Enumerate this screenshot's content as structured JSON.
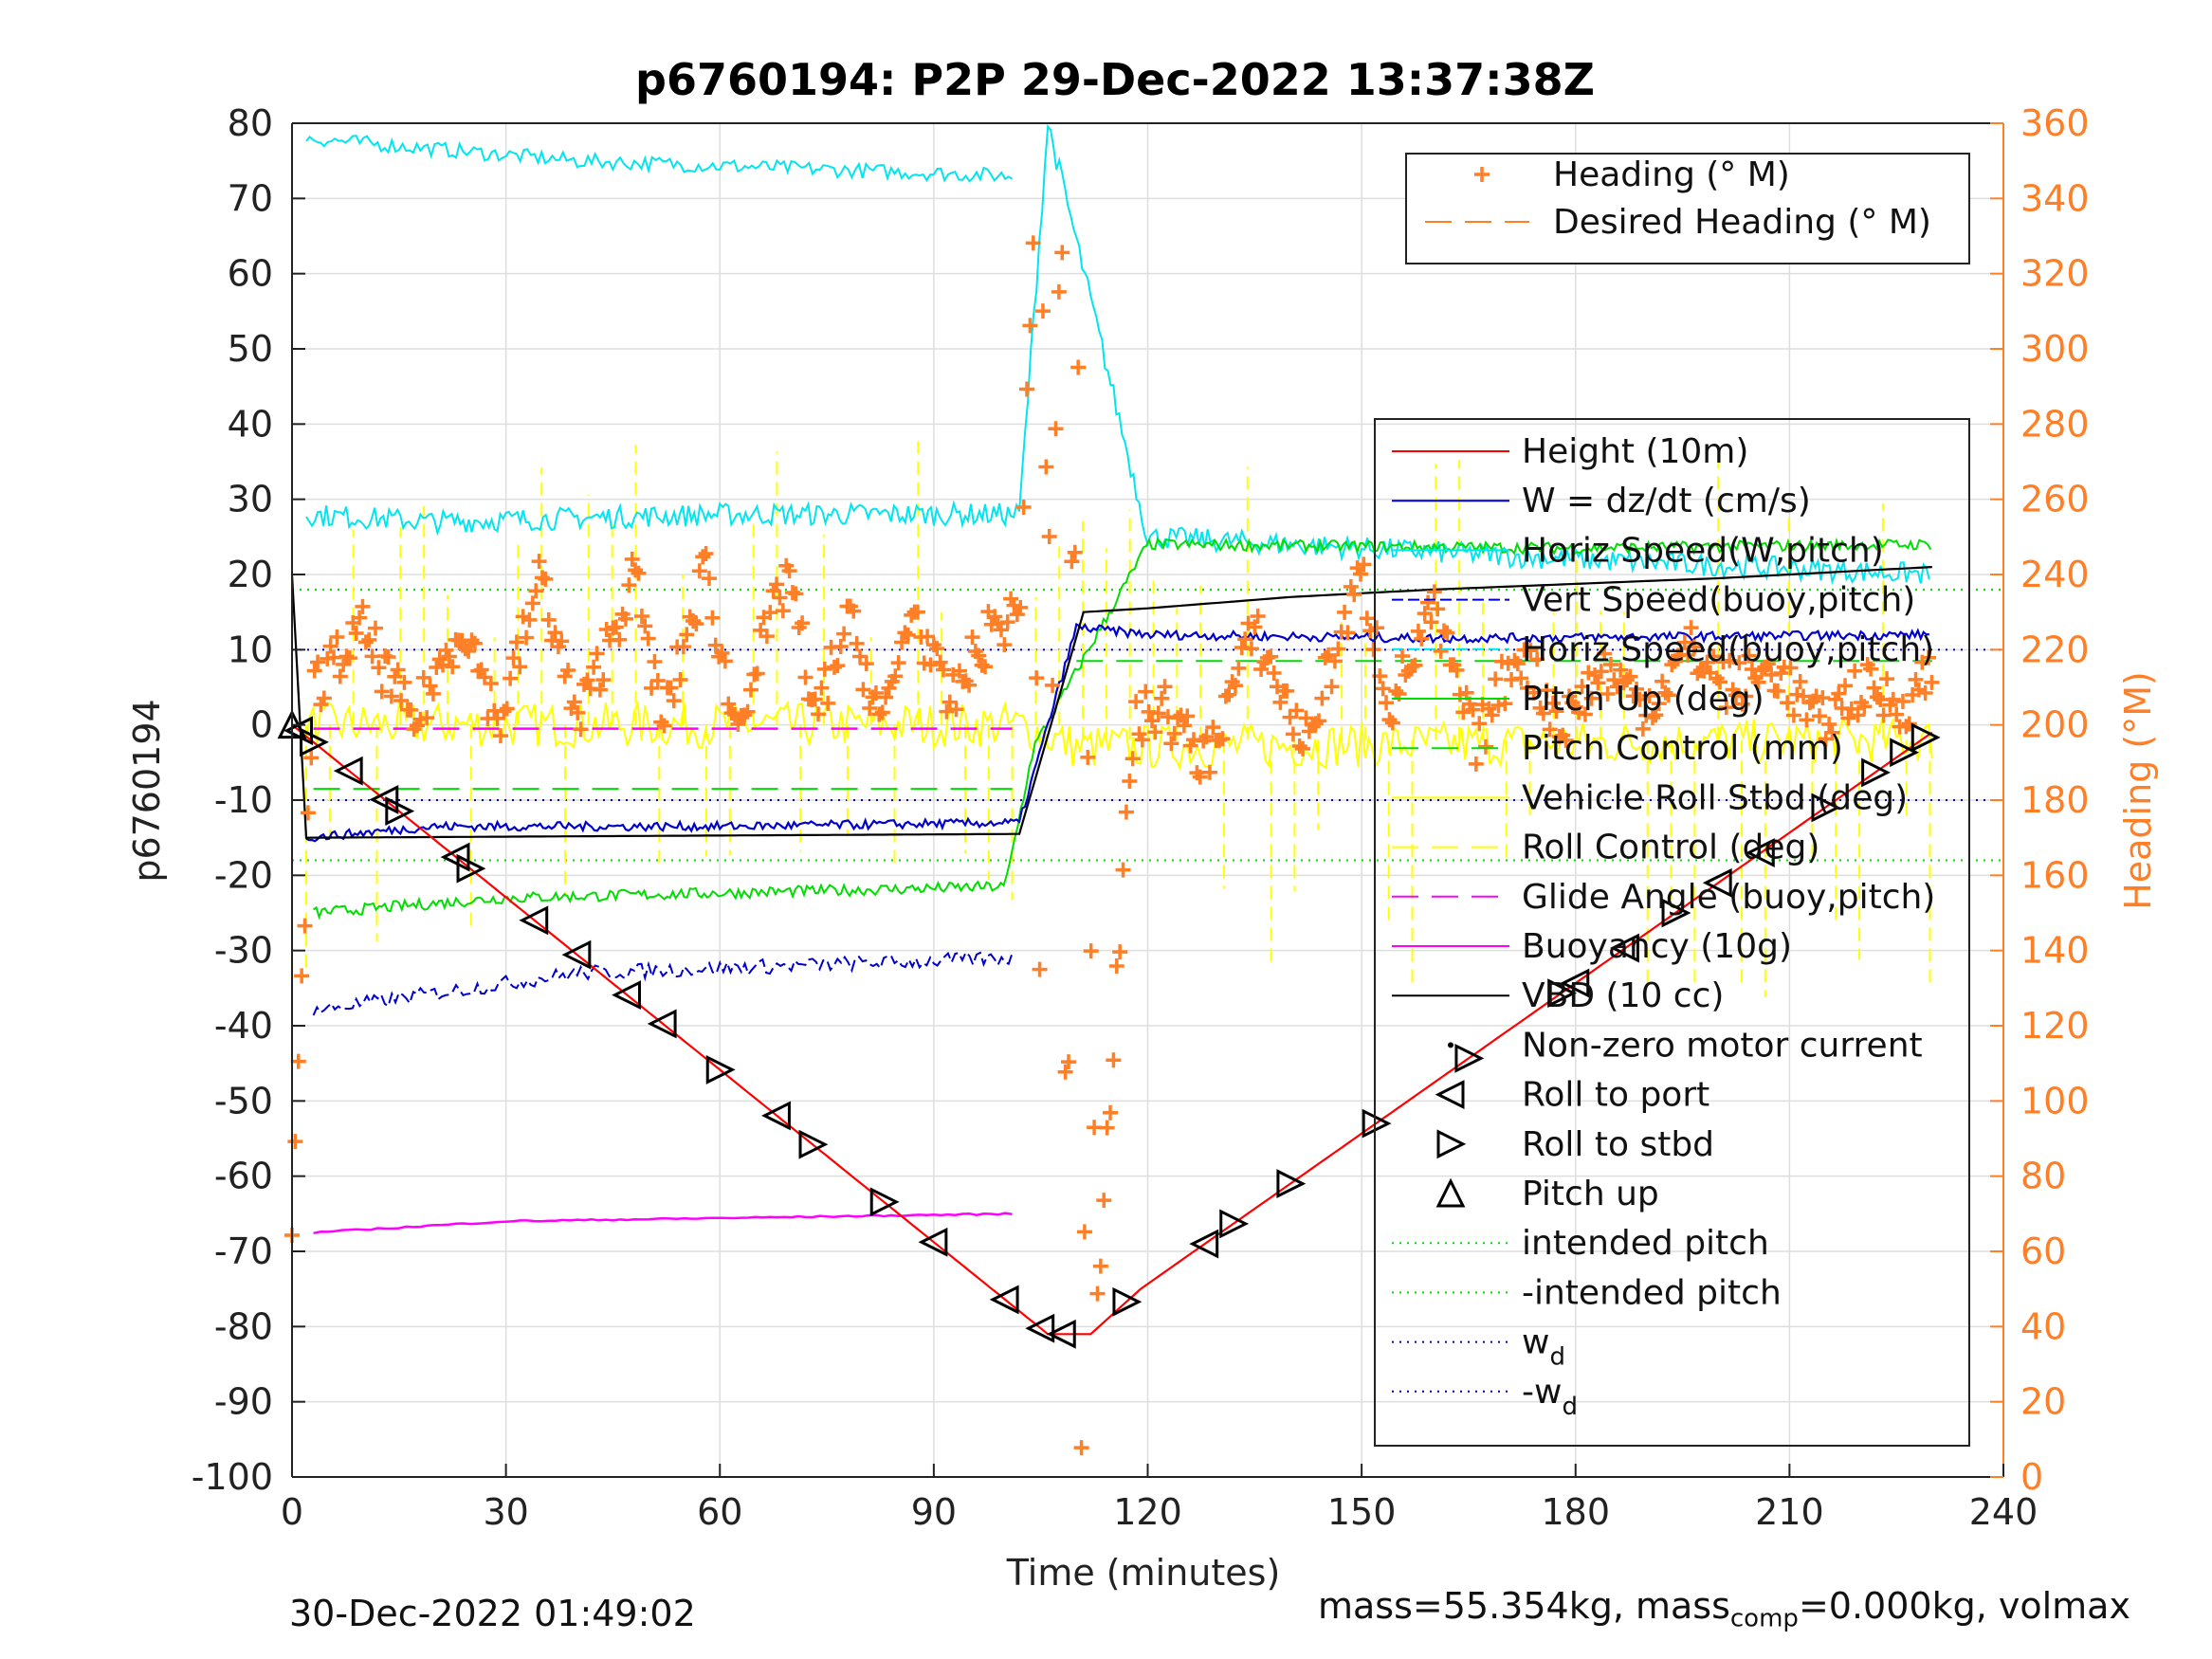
{
  "chart_data": {
    "type": "line",
    "title": "p6760194: P2P 29-Dec-2022 13:37:38Z",
    "xlabel": "Time (minutes)",
    "ylabel": "p6760194",
    "y2label": "Heading (°M)",
    "xlim": [
      0,
      240
    ],
    "ylim": [
      -100,
      80
    ],
    "y2lim": [
      0,
      360
    ],
    "xticks": [
      0,
      30,
      60,
      90,
      120,
      150,
      180,
      210,
      240
    ],
    "yticks": [
      80,
      70,
      60,
      50,
      40,
      30,
      20,
      10,
      0,
      -10,
      -20,
      -30,
      -40,
      -50,
      -60,
      -70,
      -80,
      -90,
      -100
    ],
    "y2ticks": [
      360,
      340,
      320,
      300,
      280,
      260,
      240,
      220,
      200,
      180,
      160,
      140,
      120,
      100,
      80,
      60,
      40,
      20,
      0
    ],
    "grid": true,
    "colors": {
      "heading": "#ff7f27",
      "height": "#ff0000",
      "w": "#0000cc",
      "horiz_speed": "#00e5ee",
      "pitch": "#00dd00",
      "roll": "#ffff00",
      "glide": "#ff00ff",
      "vbd": "#000000"
    },
    "legend_top": {
      "placement": "top-right",
      "entries": [
        "Heading (° M)",
        "Desired Heading (° M)"
      ]
    },
    "legend_main": {
      "placement": "right",
      "entries": [
        "Height (10m)",
        "W = dz/dt (cm/s)",
        "Horiz Speed(W,pitch)",
        "Vert Speed(buoy,pitch)",
        "Horiz Speed(buoy,pitch)",
        "Pitch Up (deg)",
        "Pitch Control (mm)",
        "Vehicle Roll Stbd (deg)",
        "Roll Control (deg)",
        "Glide Angle (buoy,pitch)",
        "Buoyancy (10g)",
        "VBD (10 cc)",
        "Non-zero motor current",
        "Roll to port",
        "Roll to stbd",
        "Pitch up",
        "intended pitch",
        "-intended pitch",
        "w_d",
        "-w_d"
      ]
    },
    "series": [
      {
        "name": "Height (10m)",
        "x": [
          0,
          106,
          112,
          119,
          230
        ],
        "values": [
          0,
          -81,
          -81,
          -75,
          -1
        ]
      },
      {
        "name": "VBD (10 cc)",
        "x": [
          0,
          2,
          102,
          111,
          120,
          140,
          160,
          200,
          230
        ],
        "values": [
          20,
          -15,
          -14.5,
          15,
          15.5,
          17,
          18,
          19.5,
          21
        ]
      },
      {
        "name": "W = dz/dt (cm/s)",
        "x": [
          2,
          20,
          60,
          102,
          110,
          120,
          160,
          230
        ],
        "values": [
          -15,
          -13.5,
          -13.5,
          -13,
          13,
          12,
          11.5,
          12
        ]
      },
      {
        "name": "Horiz Speed(W,pitch)",
        "x": [
          2,
          20,
          60,
          102,
          106,
          120,
          180,
          230
        ],
        "values": [
          28,
          27,
          28,
          28,
          80,
          25,
          22,
          20
        ]
      },
      {
        "name": "Pitch Up (deg)",
        "x": [
          3,
          30,
          100,
          104,
          120,
          180,
          230
        ],
        "values": [
          -25,
          -23,
          -21.5,
          -3,
          24,
          23.5,
          24
        ]
      },
      {
        "name": "Buoyancy (10g)",
        "x": [
          3,
          30,
          101
        ],
        "values": [
          -67.5,
          -66,
          -65
        ]
      },
      {
        "name": "Vert Speed(buoy,pitch)",
        "x": [
          3,
          40,
          101
        ],
        "values": [
          -38,
          -33,
          -31
        ]
      },
      {
        "name": "Horiz Speed(buoy,pitch)",
        "x": [
          2,
          40,
          101
        ],
        "values": [
          78,
          75,
          73
        ]
      },
      {
        "name": "intended pitch",
        "values": [
          18
        ]
      },
      {
        "name": "-intended pitch",
        "values": [
          -18
        ]
      },
      {
        "name": "w_d",
        "values": [
          10
        ]
      },
      {
        "name": "-w_d",
        "values": [
          -10
        ]
      },
      {
        "name": "Heading (° M)",
        "x": [
          0,
          3,
          10,
          17,
          24,
          29,
          35,
          40,
          48,
          52,
          58,
          62,
          70,
          73,
          78,
          83,
          87,
          92,
          98,
          102,
          104,
          107,
          110,
          113,
          118,
          122,
          128,
          135,
          142,
          150,
          154,
          160,
          166,
          172,
          178,
          184,
          190,
          196,
          202,
          208,
          214,
          220,
          226,
          230
        ],
        "values": [
          60,
          210,
          225,
          200,
          228,
          200,
          240,
          200,
          240,
          200,
          242,
          200,
          242,
          200,
          228,
          200,
          232,
          205,
          225,
          230,
          330,
          0,
          340,
          50,
          200,
          205,
          190,
          225,
          195,
          240,
          205,
          230,
          195,
          220,
          200,
          215,
          205,
          220,
          210,
          215,
          200,
          210,
          205,
          215
        ]
      }
    ],
    "markers": {
      "roll_to_port_x": [
        1,
        8,
        13,
        23,
        34,
        40,
        47,
        52,
        68,
        90,
        100,
        105,
        108,
        128,
        180,
        187,
        200,
        206
      ],
      "roll_to_stbd_x": [
        3,
        15,
        25,
        60,
        73,
        83,
        117,
        132,
        140,
        152,
        165,
        178,
        194,
        215,
        222,
        226,
        229
      ],
      "pitch_up_x": [
        0
      ]
    }
  },
  "footer": {
    "timestamp": "30-Dec-2022 01:49:02",
    "mass_text": "mass=55.354kg, mass",
    "mass_sub": "comp",
    "mass_rest": "=0.000kg, volmax"
  }
}
